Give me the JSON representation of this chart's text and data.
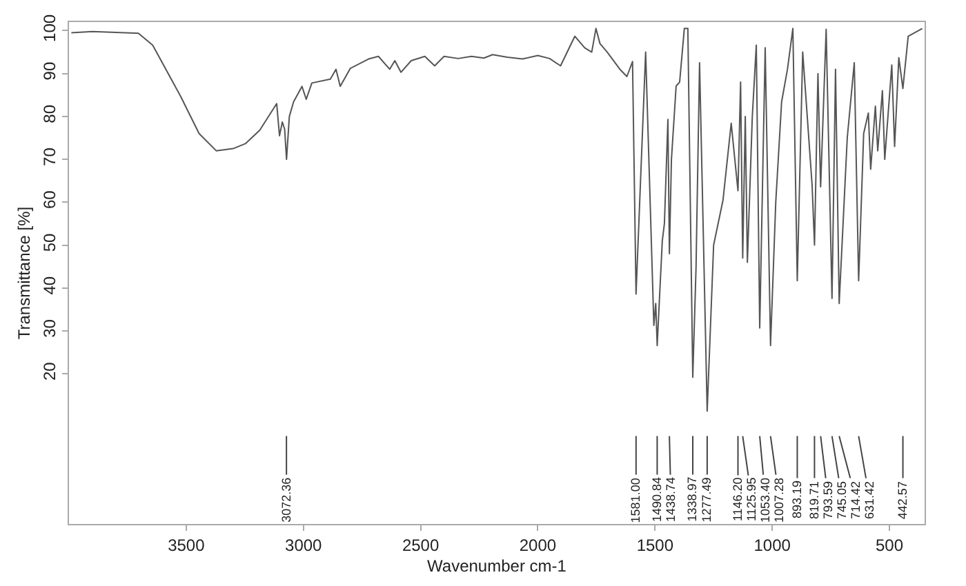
{
  "chart_data": {
    "type": "line",
    "xlabel": "Wavenumber cm-1",
    "ylabel": "Transmittance [%]",
    "xlim": [
      4000,
      350
    ],
    "xticks": [
      3500,
      3000,
      2500,
      2000,
      1500,
      1000,
      500
    ],
    "ylim": [
      -15,
      102
    ],
    "yticks": [
      20,
      30,
      40,
      50,
      60,
      70,
      80,
      90,
      100
    ],
    "marker": "none",
    "line_style": "solid",
    "series": [
      {
        "color": "#555555",
        "x": [
          3990,
          3900,
          3800,
          3704,
          3643,
          3523,
          3445,
          3372,
          3300,
          3246,
          3186,
          3114,
          3102,
          3090,
          3080,
          3072,
          3060,
          3042,
          3006,
          2988,
          2964,
          2885,
          2861,
          2843,
          2800,
          2722,
          2680,
          2632,
          2610,
          2584,
          2540,
          2482,
          2440,
          2400,
          2340,
          2283,
          2230,
          2193,
          2130,
          2065,
          2000,
          1950,
          1903,
          1842,
          1800,
          1770,
          1752,
          1735,
          1704,
          1650,
          1620,
          1596,
          1581,
          1540,
          1505,
          1497,
          1490.8,
          1469,
          1460,
          1445,
          1438.7,
          1430,
          1410,
          1395,
          1375,
          1360,
          1339,
          1325,
          1310,
          1277.5,
          1250,
          1210,
          1175,
          1146.2,
          1135,
          1126,
          1115,
          1106,
          1085,
          1068,
          1053.4,
          1030,
          1007.3,
          985,
          960,
          935,
          912,
          893.2,
          870,
          830,
          819.7,
          805,
          793.6,
          770,
          745,
          730,
          714.4,
          680,
          650,
          631.4,
          610,
          590,
          580,
          560,
          550,
          530,
          520,
          490,
          478,
          460,
          442.6,
          420,
          360
        ],
        "values": [
          99.5,
          99.8,
          99.6,
          99.4,
          96.6,
          84.6,
          76,
          72,
          72.5,
          73.7,
          76.8,
          83,
          75.5,
          78.7,
          77,
          70,
          80,
          83.4,
          87,
          84,
          87.8,
          88.7,
          91,
          87,
          91.2,
          93.4,
          94,
          91,
          93,
          90.3,
          93,
          94,
          91.8,
          94,
          93.5,
          94,
          93.6,
          94.4,
          93.8,
          93.4,
          94.2,
          93.5,
          91.8,
          98.7,
          96,
          95,
          100.5,
          97,
          95,
          91,
          89.3,
          92.8,
          38.6,
          95,
          31.3,
          36.4,
          26.6,
          51,
          55,
          79.3,
          48,
          70,
          87.1,
          88,
          100.5,
          100.5,
          19.2,
          44.8,
          92.5,
          11.3,
          50,
          60.5,
          78.4,
          62.7,
          88,
          47,
          80,
          46,
          80,
          96.6,
          30.7,
          96,
          26.6,
          60,
          83.4,
          91,
          100.5,
          41.7,
          95,
          64,
          50,
          90,
          63.6,
          100.3,
          37.6,
          91,
          36.4,
          75,
          92.5,
          41.7,
          76,
          80.8,
          67.7,
          82.4,
          72,
          86,
          70,
          92,
          73,
          93.7,
          86.5,
          98.7,
          100.5
        ]
      }
    ],
    "annotations": [
      {
        "text": "3072.36",
        "x": 3072.36
      },
      {
        "text": "1581.00",
        "x": 1581.0
      },
      {
        "text": "1490.84",
        "x": 1490.84
      },
      {
        "text": "1438.74",
        "x": 1438.74
      },
      {
        "text": "1338.97",
        "x": 1338.97
      },
      {
        "text": "1277.49",
        "x": 1277.49
      },
      {
        "text": "1146.20",
        "x": 1146.2
      },
      {
        "text": "1125.95",
        "x": 1125.95
      },
      {
        "text": "1053.40",
        "x": 1053.4
      },
      {
        "text": "1007.28",
        "x": 1007.28
      },
      {
        "text": "893.19",
        "x": 893.19
      },
      {
        "text": "819.71",
        "x": 819.71
      },
      {
        "text": "793.59",
        "x": 793.59
      },
      {
        "text": "745.05",
        "x": 745.05
      },
      {
        "text": "714.42",
        "x": 714.42
      },
      {
        "text": "631.42",
        "x": 631.42
      },
      {
        "text": "442.57",
        "x": 442.57
      }
    ]
  }
}
